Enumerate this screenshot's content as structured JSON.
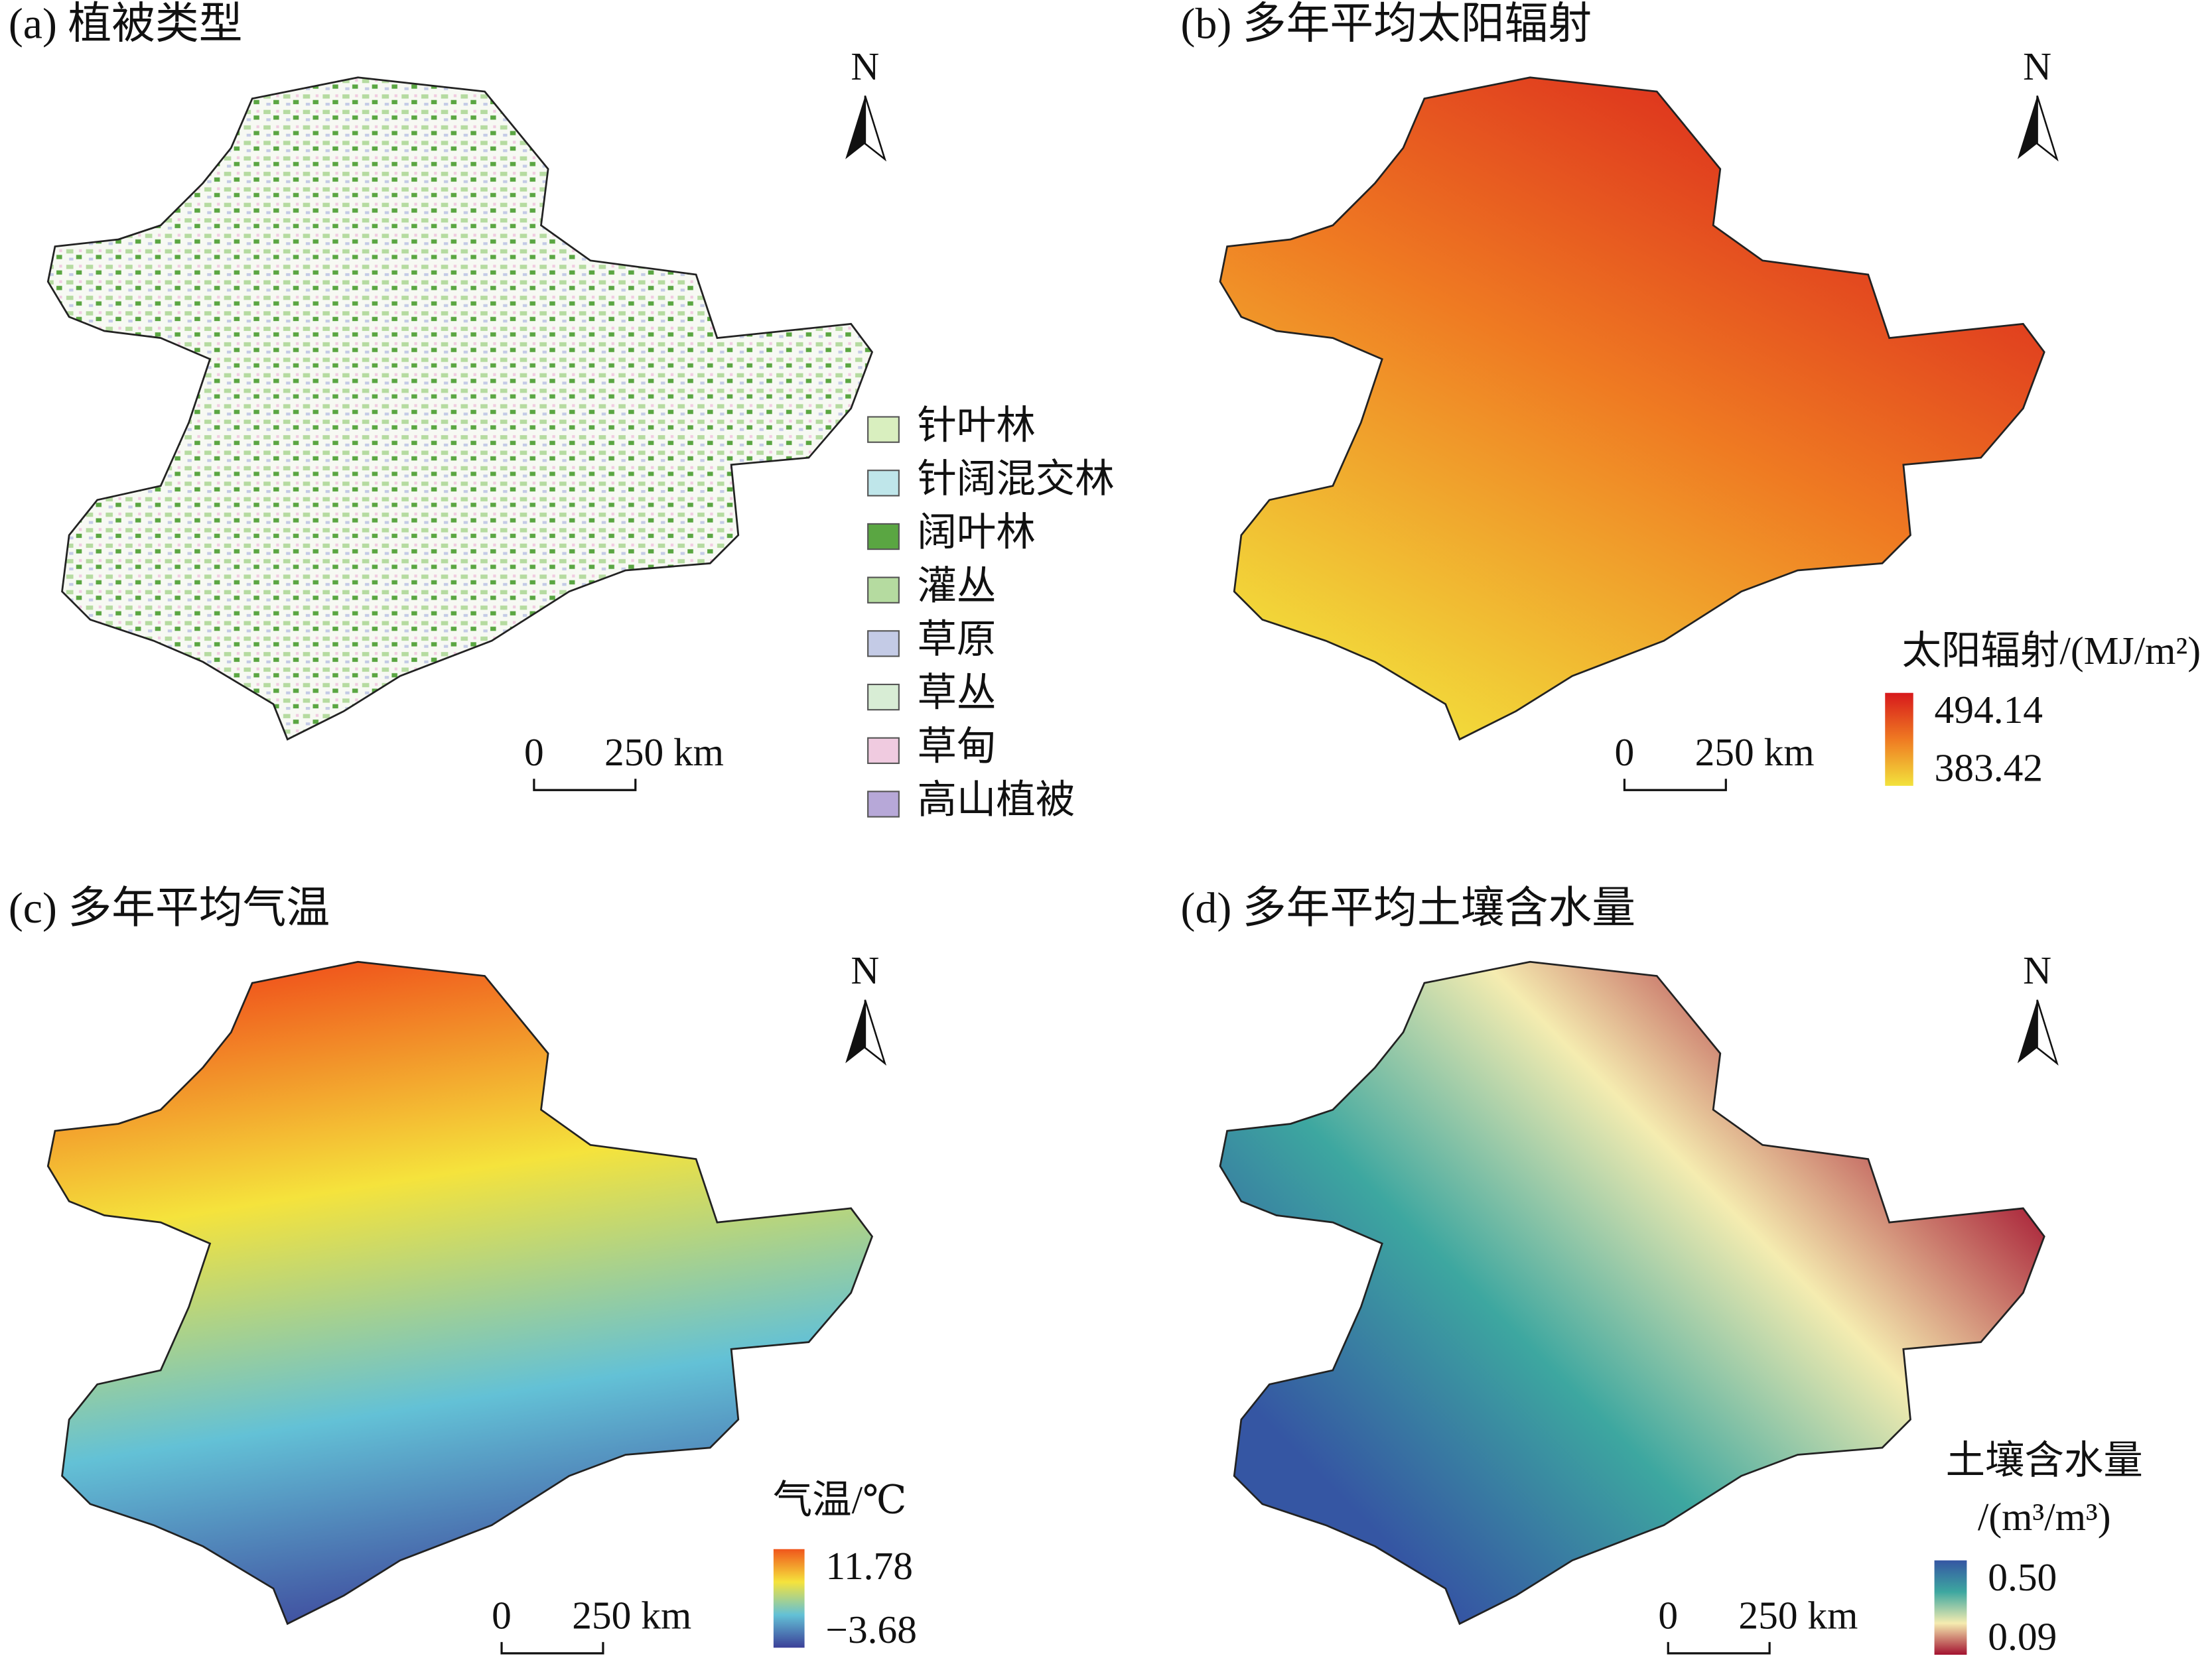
{
  "panels": [
    {
      "title": "(a) 植被类型",
      "north": "N",
      "scale_bar": {
        "start": "0",
        "end": "250 km"
      },
      "legend": {
        "items": [
          {
            "label": "针叶林",
            "color": "#d9efbf"
          },
          {
            "label": "针阔混交林",
            "color": "#bfe6ea"
          },
          {
            "label": "阔叶林",
            "color": "#5aa642"
          },
          {
            "label": "灌丛",
            "color": "#b5dba0"
          },
          {
            "label": "草原",
            "color": "#c4cbe6"
          },
          {
            "label": "草丛",
            "color": "#d8edd5"
          },
          {
            "label": "草甸",
            "color": "#f0cbe0"
          },
          {
            "label": "高山植被",
            "color": "#b7a8d8"
          }
        ]
      }
    },
    {
      "title": "(b) 多年平均太阳辐射",
      "north": "N",
      "scale_bar": {
        "start": "0",
        "end": "250 km"
      },
      "legend": {
        "title_lines": [
          "太阳辐射/(MJ/m²)"
        ],
        "max_label": "494.14",
        "min_label": "383.42",
        "colors": [
          "#d7191c",
          "#ef7a22",
          "#f2e23c"
        ]
      }
    },
    {
      "title": "(c) 多年平均气温",
      "north": "N",
      "scale_bar": {
        "start": "0",
        "end": "250 km"
      },
      "legend": {
        "title_lines": [
          "气温/℃"
        ],
        "max_label": "11.78",
        "min_label": "−3.68",
        "colors": [
          "#f0561c",
          "#f5e33c",
          "#63c1d6",
          "#3b3f98"
        ]
      }
    },
    {
      "title": "(d) 多年平均土壤含水量",
      "north": "N",
      "scale_bar": {
        "start": "0",
        "end": "250 km"
      },
      "legend": {
        "title_lines": [
          "土壤含水量",
          "/(m³/m³)"
        ],
        "max_label": "0.50",
        "min_label": "0.09",
        "colors": [
          "#3556a3",
          "#3da7a0",
          "#f5ecb0",
          "#a3122f"
        ]
      }
    }
  ]
}
